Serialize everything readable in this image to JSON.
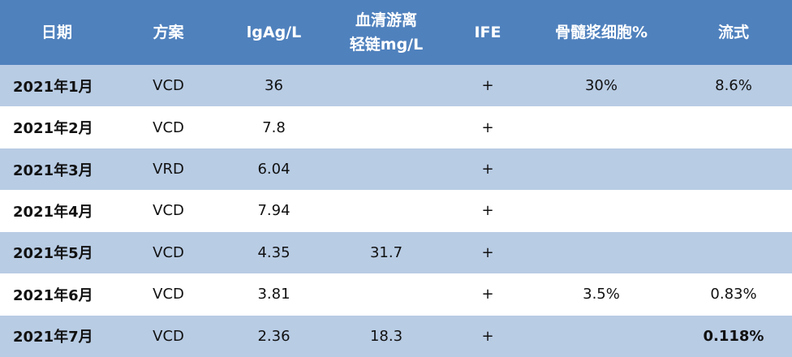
{
  "table": {
    "header": [
      "日期",
      "方案",
      "lgAg/L",
      [
        "血清游离",
        "轻链mg/L"
      ],
      "IFE",
      "骨髓浆细胞%",
      "流式"
    ],
    "rows": [
      [
        "2021年1月",
        "VCD",
        "36",
        null,
        "+",
        "30%",
        "8.6%"
      ],
      [
        "2021年2月",
        "VCD",
        "7.8",
        null,
        "+",
        null,
        null
      ],
      [
        "2021年3月",
        "VRD",
        "6.04",
        null,
        "+",
        null,
        null
      ],
      [
        "2021年4月",
        "VCD",
        "7.94",
        null,
        "+",
        null,
        null
      ],
      [
        "2021年5月",
        "VCD",
        "4.35",
        "31.7",
        "+",
        null,
        null
      ],
      [
        "2021年6月",
        "VCD",
        "3.81",
        null,
        "+",
        "3.5%",
        "0.83%"
      ],
      [
        "2021年7月",
        "VCD",
        "2.36",
        "18.3",
        "+",
        null,
        "0.118%"
      ]
    ]
  }
}
